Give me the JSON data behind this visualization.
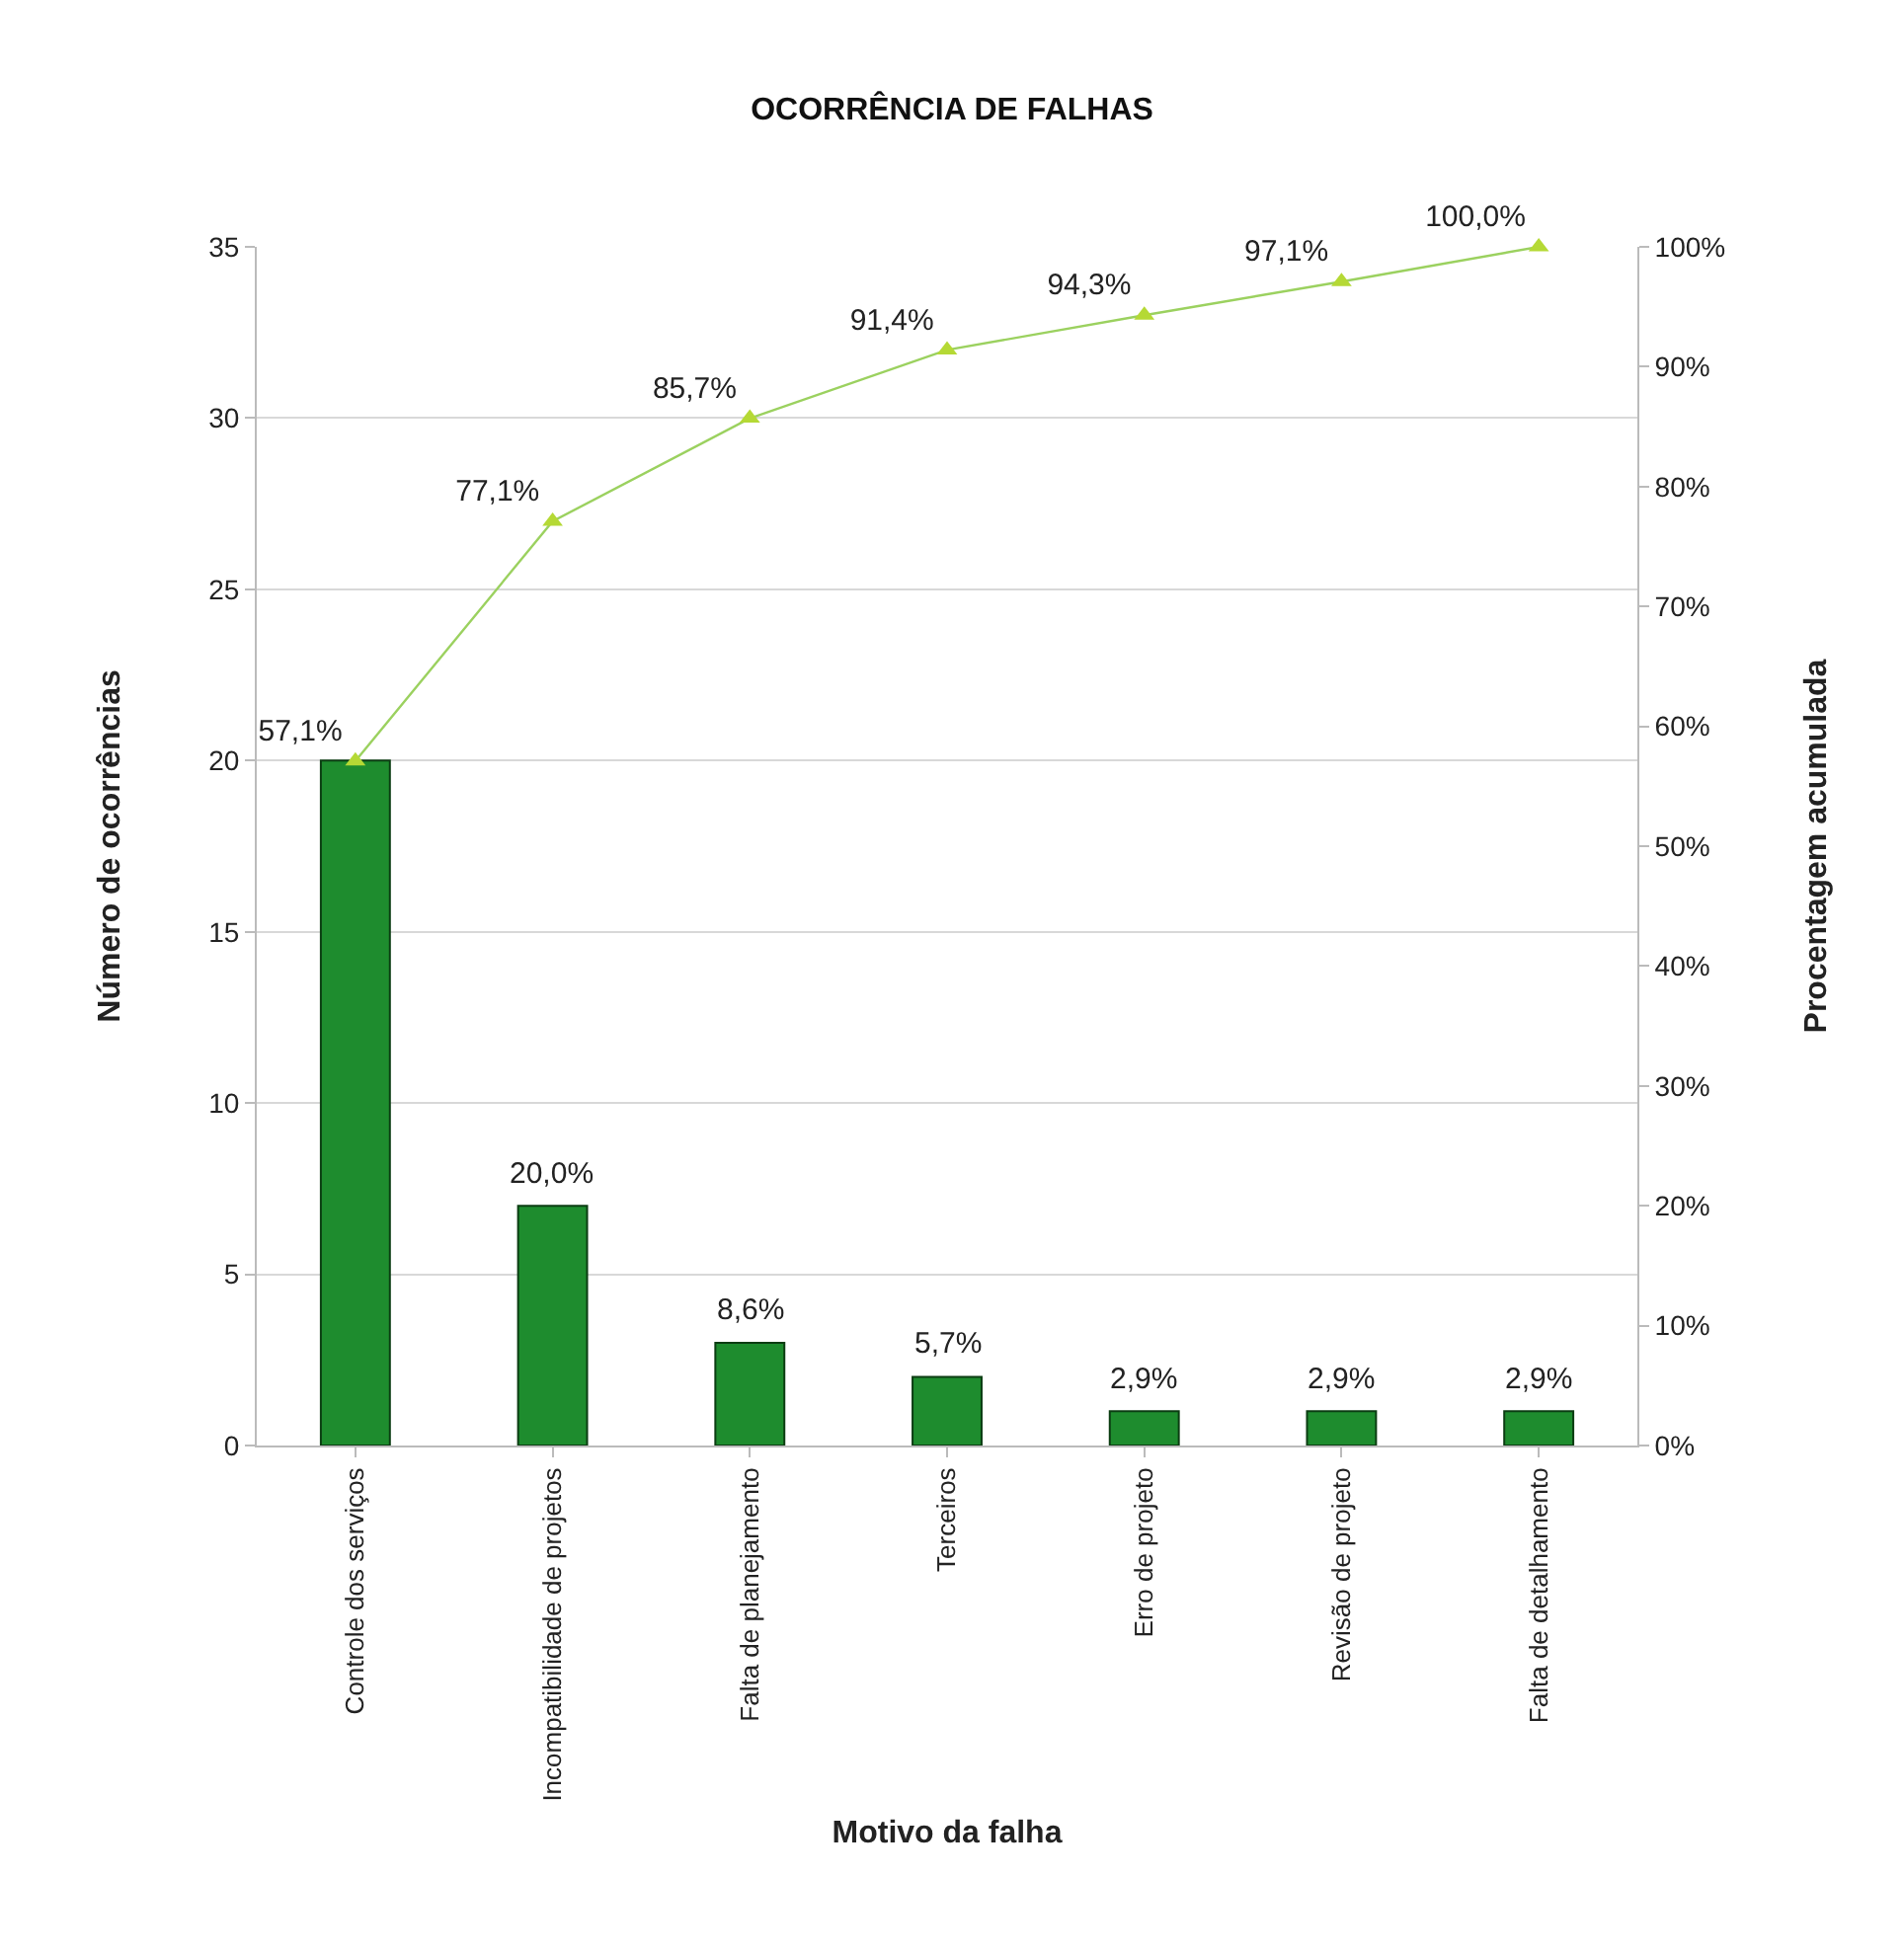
{
  "chart_data": {
    "type": "bar",
    "title": "OCORRÊNCIA DE FALHAS",
    "xlabel": "Motivo da falha",
    "ylabel": "Número de ocorrências",
    "y2label": "Procentagem acumulada",
    "categories": [
      "Controle dos serviços",
      "Incompatibilidade de projetos",
      "Falta de planejamento",
      "Terceiros",
      "Erro de projeto",
      "Revisão de projeto",
      "Falta de detalhamento"
    ],
    "series": [
      {
        "color": "#1e8c2e",
        "values": [
          20,
          7,
          3,
          2,
          1,
          1,
          1
        ]
      },
      {
        "type": "line",
        "axis": "y2",
        "color": "#9bd15f",
        "marker": "triangle",
        "values": [
          57.1,
          77.1,
          85.7,
          91.4,
          94.3,
          97.1,
          100.0
        ],
        "value_labels": [
          "57,1%",
          "77,1%",
          "85,7%",
          "91,4%",
          "94,3%",
          "97,1%",
          "100,0%"
        ]
      }
    ],
    "annotations": [
      {
        "text": "20,0%",
        "x": "Incompatibilidade de projetos",
        "y": 7
      },
      {
        "text": "8,6%",
        "x": "Falta de planejamento",
        "y": 3
      },
      {
        "text": "5,7%",
        "x": "Terceiros",
        "y": 2
      },
      {
        "text": "2,9%",
        "x": "Erro de projeto",
        "y": 1
      },
      {
        "text": "2,9%",
        "x": "Revisão de projeto",
        "y": 1
      },
      {
        "text": "2,9%",
        "x": "Falta de detalhamento",
        "y": 1
      }
    ],
    "ylim": [
      0,
      35
    ],
    "yticks": [
      0,
      5,
      10,
      15,
      20,
      25,
      30,
      35
    ],
    "y2lim": [
      0,
      100
    ],
    "y2ticks": [
      {
        "value": 0,
        "label": "0%"
      },
      {
        "value": 10,
        "label": "10%"
      },
      {
        "value": 20,
        "label": "20%"
      },
      {
        "value": 30,
        "label": "30%"
      },
      {
        "value": 40,
        "label": "40%"
      },
      {
        "value": 50,
        "label": "50%"
      },
      {
        "value": 60,
        "label": "60%"
      },
      {
        "value": 70,
        "label": "70%"
      },
      {
        "value": 80,
        "label": "80%"
      },
      {
        "value": 90,
        "label": "90%"
      },
      {
        "value": 100,
        "label": "100%"
      }
    ],
    "grid": "y"
  }
}
